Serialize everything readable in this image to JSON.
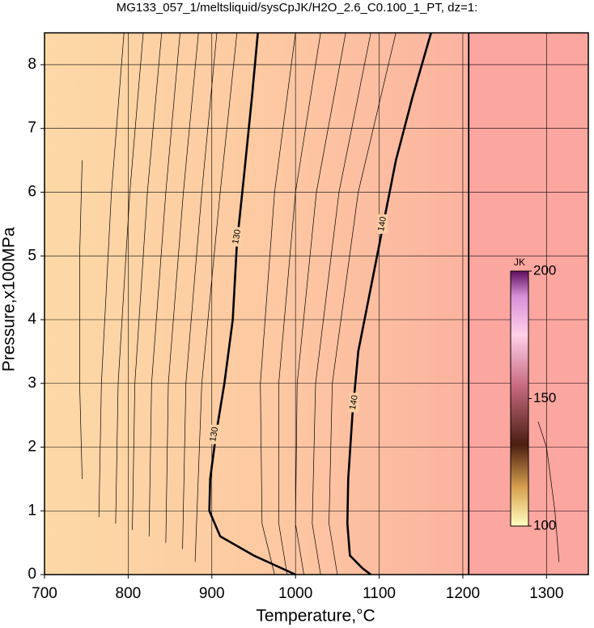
{
  "chart_data": {
    "type": "contour",
    "title": "MG133_057_1/meltsliquid/sysCpJK/H2O_2.6_C0.100_1_PT, dz=1:",
    "x_label": "Temperature,°C",
    "y_label": "Pressure,x100MPa",
    "xlim": [
      700,
      1350
    ],
    "ylim": [
      0,
      8.5
    ],
    "xticks": [
      700,
      800,
      900,
      1000,
      1100,
      1200,
      1300
    ],
    "yticks": [
      0,
      1,
      2,
      3,
      4,
      5,
      6,
      7,
      8
    ],
    "grid": true,
    "labeled_contours": [
      {
        "label": "130",
        "x": [
          1000,
          950,
          910,
          897,
          898,
          905,
          915,
          925,
          930,
          938,
          948,
          955
        ],
        "y": [
          0,
          0.3,
          0.6,
          1,
          1.5,
          2.2,
          3,
          4,
          5.2,
          6.2,
          7.5,
          8.5
        ]
      },
      {
        "label": "140",
        "x": [
          1090,
          1080,
          1065,
          1062,
          1063,
          1068,
          1075,
          1090,
          1105,
          1120,
          1140,
          1162
        ],
        "y": [
          0,
          0.1,
          0.3,
          0.8,
          1.5,
          2.5,
          3.5,
          4.5,
          5.5,
          6.5,
          7.5,
          8.5
        ]
      }
    ],
    "boundary": {
      "x": [
        1207,
        1207
      ],
      "y": [
        0,
        8.5
      ]
    },
    "thin_contours": [
      {
        "x": [
          765,
          768,
          780,
          795
        ],
        "y": [
          0.9,
          3,
          6,
          8.5
        ]
      },
      {
        "x": [
          785,
          788,
          802,
          818
        ],
        "y": [
          0.8,
          3,
          6,
          8.5
        ]
      },
      {
        "x": [
          805,
          808,
          823,
          840
        ],
        "y": [
          0.7,
          3,
          6,
          8.5
        ]
      },
      {
        "x": [
          825,
          828,
          845,
          862
        ],
        "y": [
          0.6,
          3,
          6,
          8.5
        ]
      },
      {
        "x": [
          845,
          848,
          866,
          884
        ],
        "y": [
          0.5,
          3,
          6,
          8.5
        ]
      },
      {
        "x": [
          865,
          869,
          888,
          906
        ],
        "y": [
          0.4,
          3,
          6,
          8.5
        ]
      },
      {
        "x": [
          880,
          888,
          910,
          930
        ],
        "y": [
          0.2,
          3,
          6,
          8.5
        ]
      },
      {
        "x": [
          975,
          960,
          958,
          975,
          1000
        ],
        "y": [
          0,
          0.8,
          3,
          6,
          8.5
        ]
      },
      {
        "x": [
          990,
          980,
          980,
          1000,
          1030
        ],
        "y": [
          0,
          0.8,
          3,
          6,
          8.5
        ]
      },
      {
        "x": [
          1010,
          1000,
          1002,
          1025,
          1060
        ],
        "y": [
          0,
          0.8,
          3,
          6,
          8.5
        ]
      },
      {
        "x": [
          1030,
          1020,
          1024,
          1052,
          1090
        ],
        "y": [
          0,
          0.8,
          3,
          6,
          8.5
        ]
      },
      {
        "x": [
          1050,
          1040,
          1044,
          1075,
          1120
        ],
        "y": [
          0,
          0.8,
          3,
          6,
          8.5
        ]
      },
      {
        "x": [
          1315,
          1310,
          1300,
          1290
        ],
        "y": [
          0.2,
          1,
          2,
          2.4
        ]
      },
      {
        "x": [
          745,
          742,
          742,
          745
        ],
        "y": [
          1.5,
          3,
          5,
          6.5
        ]
      }
    ],
    "colorbar": {
      "label": "JK",
      "clim": [
        100,
        200
      ],
      "ticks": [
        100,
        150,
        200
      ]
    }
  }
}
